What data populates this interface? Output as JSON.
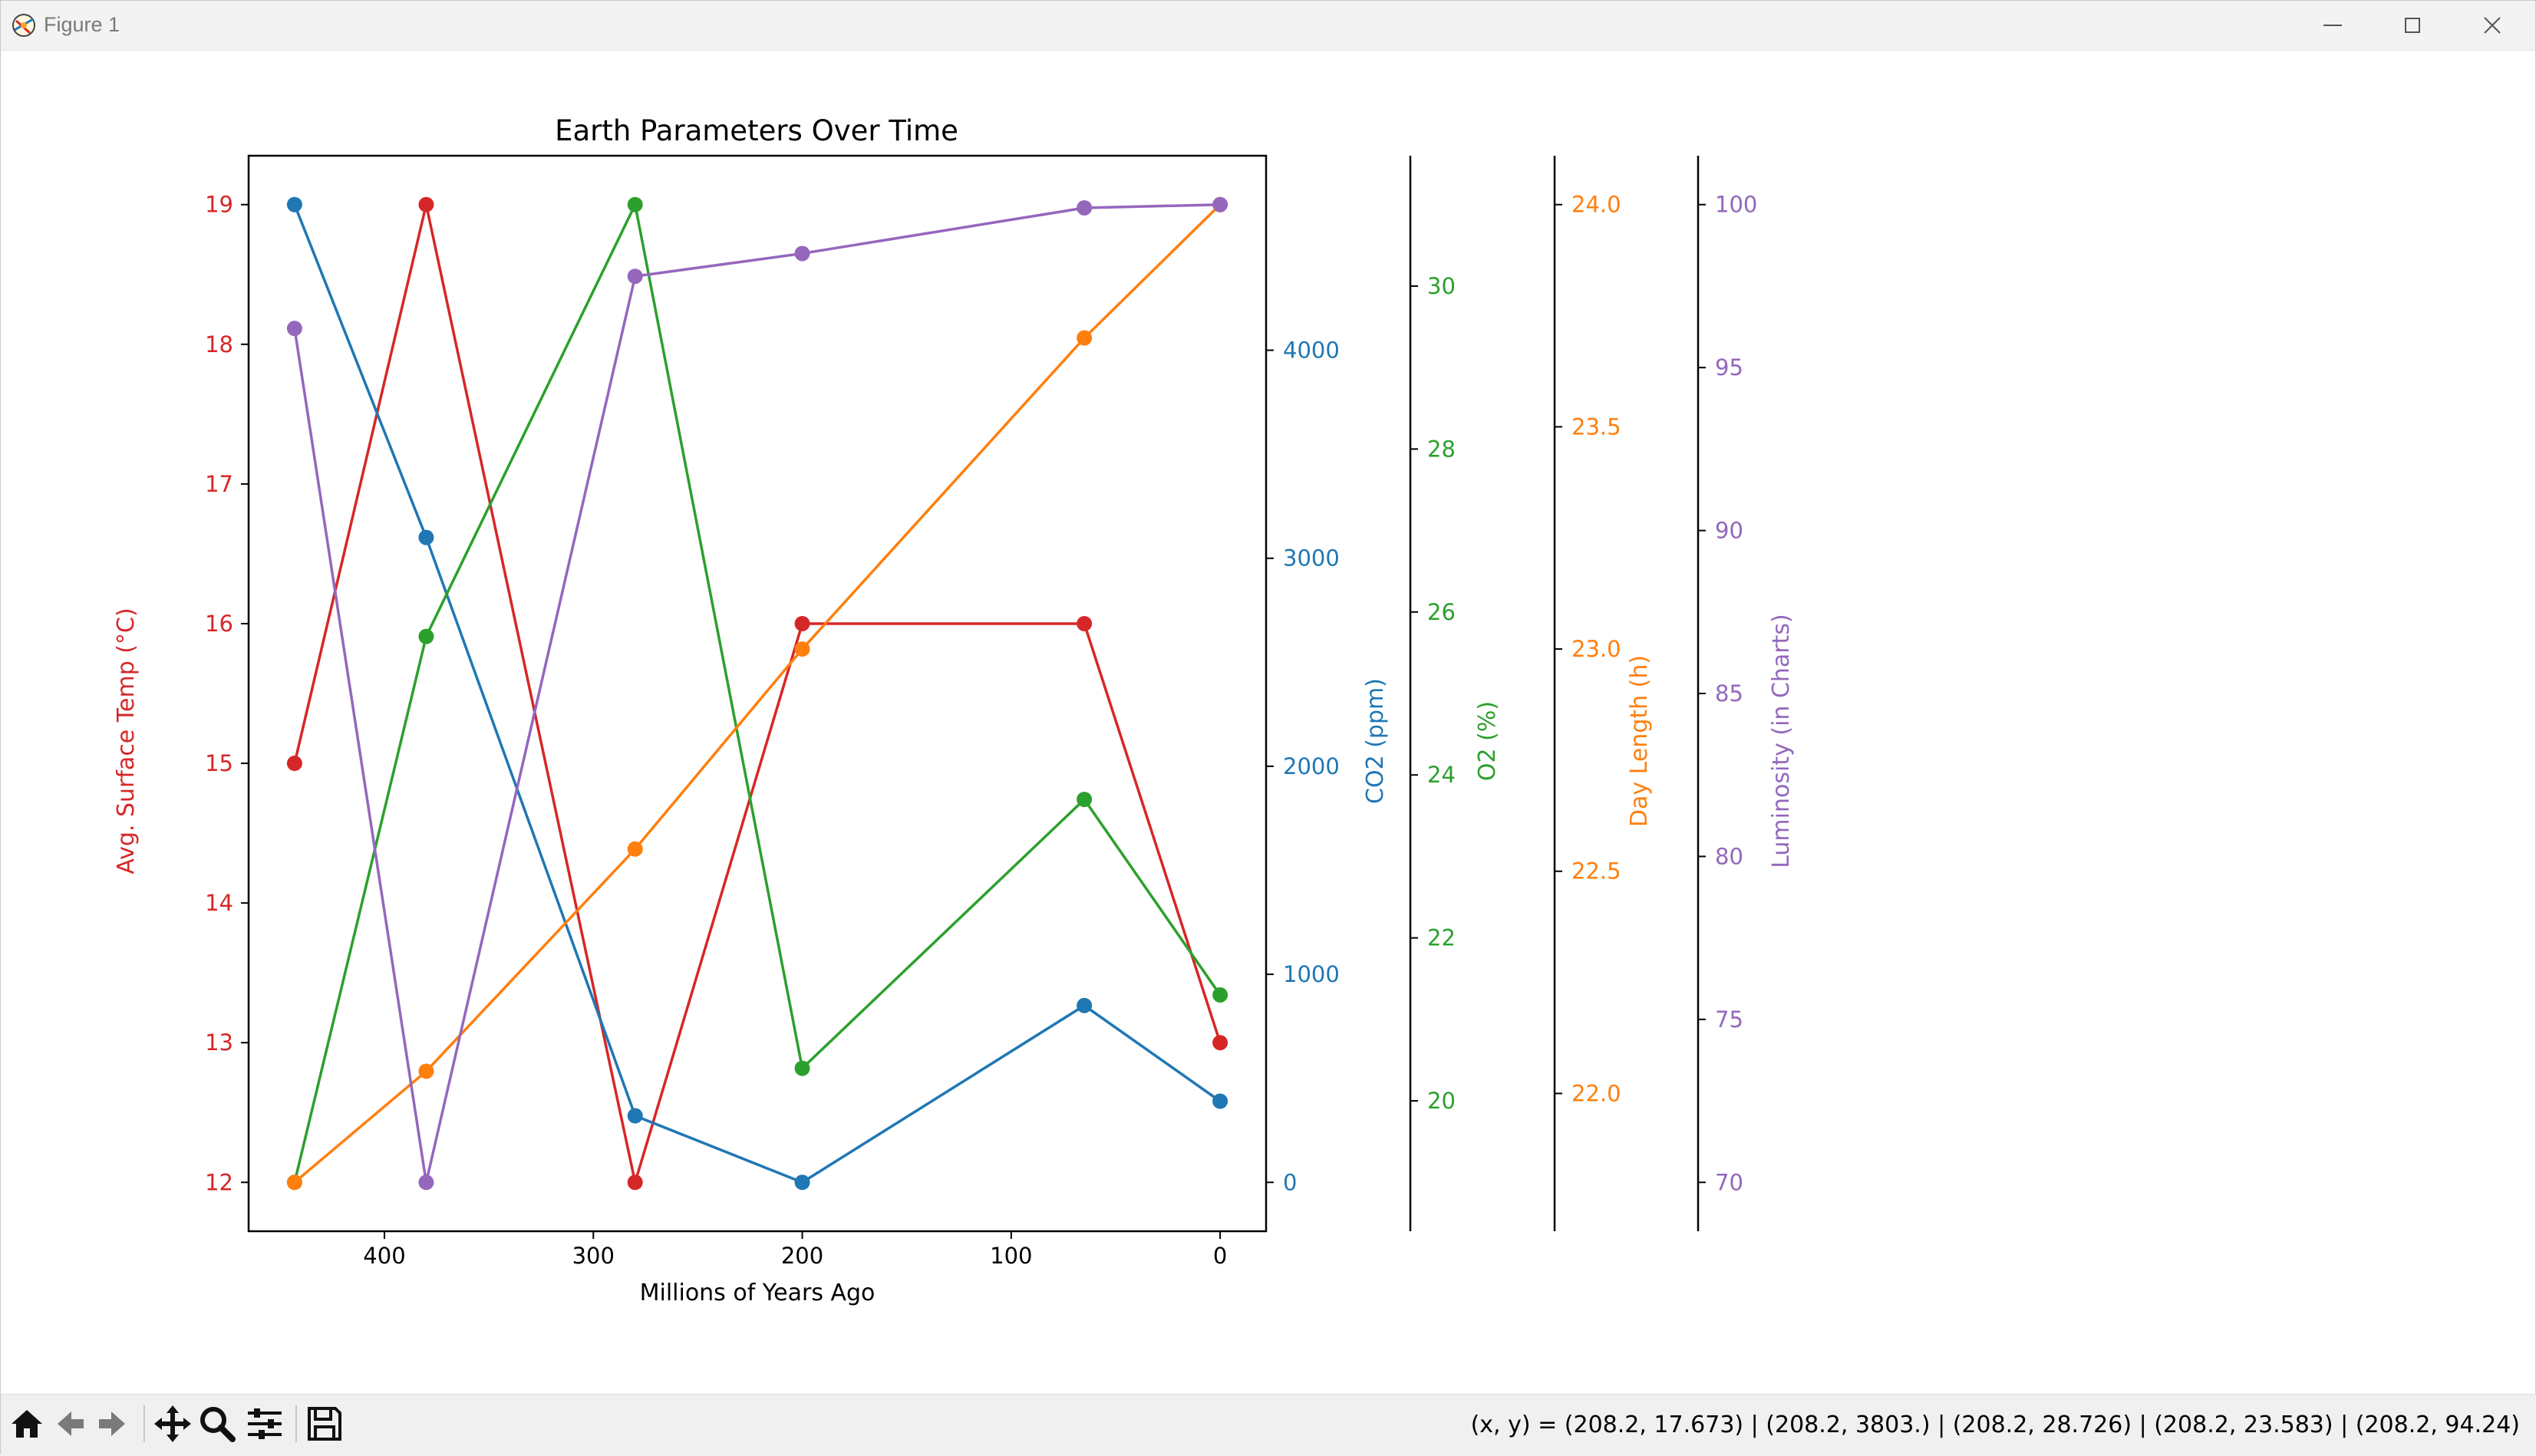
{
  "window": {
    "title": "Figure 1",
    "controls": [
      "minimize",
      "maximize",
      "close"
    ]
  },
  "toolbar": {
    "tools": [
      "home-icon",
      "back-icon",
      "forward-icon",
      "pan-icon",
      "zoom-icon",
      "configure-subplots-icon",
      "save-icon"
    ],
    "coords_text": "(x, y) = (208.2, 17.673) | (208.2, 3803.) | (208.2, 28.726) | (208.2, 23.583) | (208.2, 94.24)"
  },
  "chart_data": {
    "type": "line",
    "title": "Earth Parameters Over Time",
    "xlabel": "Millions of Years Ago",
    "x_inverted": true,
    "xlim": [
      465,
      -22
    ],
    "x_ticks": [
      400,
      300,
      200,
      100,
      0
    ],
    "x": [
      443,
      380,
      280,
      200,
      65,
      0
    ],
    "markers": true,
    "series": [
      {
        "name": "Avg. Surface Temp (°C)",
        "color": "#d62728",
        "values": [
          15,
          19,
          12,
          16,
          16,
          13
        ],
        "axis": "left",
        "ylim": [
          11.65,
          19.35
        ],
        "ticks": [
          12,
          13,
          14,
          15,
          16,
          17,
          18,
          19
        ]
      },
      {
        "name": "CO2 (ppm)",
        "color": "#1f77b4",
        "values": [
          4700,
          3100,
          320,
          0,
          850,
          390
        ],
        "axis": "right-1",
        "ylim": [
          -235,
          4935
        ],
        "ticks": [
          0,
          1000,
          2000,
          3000,
          4000
        ]
      },
      {
        "name": "O2 (%)",
        "color": "#2ca02c",
        "values": [
          19,
          25.7,
          31,
          20.4,
          23.7,
          21.3
        ],
        "axis": "right-2",
        "ylim": [
          18.4,
          31.6
        ],
        "ticks": [
          20,
          22,
          24,
          26,
          28,
          30
        ]
      },
      {
        "name": "Day Length (h)",
        "color": "#ff7f0e",
        "values": [
          21.8,
          22.05,
          22.55,
          23,
          23.7,
          24
        ],
        "axis": "right-3",
        "ylim": [
          21.69,
          24.11
        ],
        "ticks": [
          22.0,
          22.5,
          23.0,
          23.5,
          24.0
        ],
        "tick_labels": [
          "22.0",
          "22.5",
          "23.0",
          "23.5",
          "24.0"
        ]
      },
      {
        "name": "Luminosity (in Charts)",
        "color": "#9467bd",
        "values": [
          96.2,
          70,
          97.8,
          98.5,
          99.9,
          100
        ],
        "axis": "right-4",
        "ylim": [
          68.5,
          101.5
        ],
        "ticks": [
          70,
          75,
          80,
          85,
          90,
          95,
          100
        ]
      }
    ],
    "grid": false,
    "legend": "none"
  }
}
